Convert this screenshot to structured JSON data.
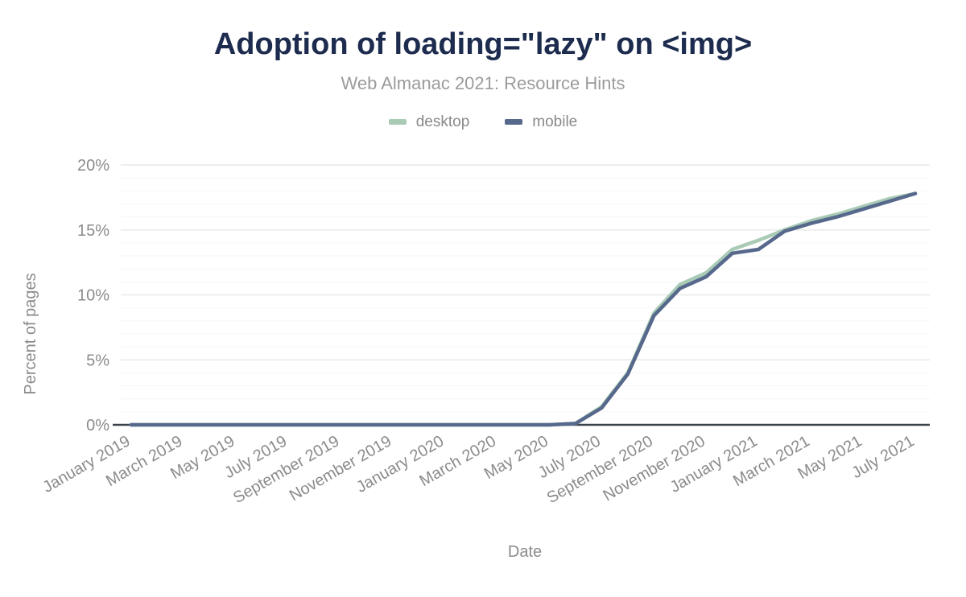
{
  "header": {
    "title": "Adoption of loading=\"lazy\" on <img>",
    "subtitle": "Web Almanac 2021: Resource Hints"
  },
  "colors": {
    "title": "#1d2c4e",
    "subtitle": "#9b9b9b",
    "axis_text": "#8b8b8b",
    "grid_major": "#e9e9e9",
    "grid_minor": "#f6f6f6",
    "axis_line": "#3c424b",
    "desktop": "#a9cbb6",
    "mobile": "#56688c",
    "background": "#ffffff"
  },
  "chart_data": {
    "type": "line",
    "title": "Adoption of loading=\"lazy\" on <img>",
    "subtitle": "Web Almanac 2021: Resource Hints",
    "xlabel": "Date",
    "ylabel": "Percent of pages",
    "legend_position": "top",
    "grid": "horizontal, minor every 1%, major every 5%",
    "ylim": [
      0,
      20
    ],
    "y_major_step": 5,
    "y_minor_step": 1,
    "y_tick_labels": [
      "0%",
      "5%",
      "10%",
      "15%",
      "20%"
    ],
    "x_tick_every": 2,
    "x": [
      "January 2019",
      "February 2019",
      "March 2019",
      "April 2019",
      "May 2019",
      "June 2019",
      "July 2019",
      "August 2019",
      "September 2019",
      "October 2019",
      "November 2019",
      "December 2019",
      "January 2020",
      "February 2020",
      "March 2020",
      "April 2020",
      "May 2020",
      "June 2020",
      "July 2020",
      "August 2020",
      "September 2020",
      "October 2020",
      "November 2020",
      "December 2020",
      "January 2021",
      "February 2021",
      "March 2021",
      "April 2021",
      "May 2021",
      "June 2021",
      "July 2021"
    ],
    "series": [
      {
        "name": "desktop",
        "color": "#a9cbb6",
        "values": [
          0,
          0,
          0,
          0,
          0,
          0,
          0,
          0,
          0,
          0,
          0,
          0,
          0,
          0,
          0,
          0,
          0,
          0.1,
          1.4,
          4.0,
          8.6,
          10.8,
          11.7,
          13.5,
          14.2,
          15.0,
          15.7,
          16.2,
          16.8,
          17.4,
          17.8
        ]
      },
      {
        "name": "mobile",
        "color": "#56688c",
        "values": [
          0,
          0,
          0,
          0,
          0,
          0,
          0,
          0,
          0,
          0,
          0,
          0,
          0,
          0,
          0,
          0,
          0,
          0.1,
          1.3,
          3.9,
          8.4,
          10.5,
          11.4,
          13.2,
          13.5,
          14.9,
          15.5,
          16.0,
          16.6,
          17.2,
          17.8
        ]
      }
    ]
  }
}
